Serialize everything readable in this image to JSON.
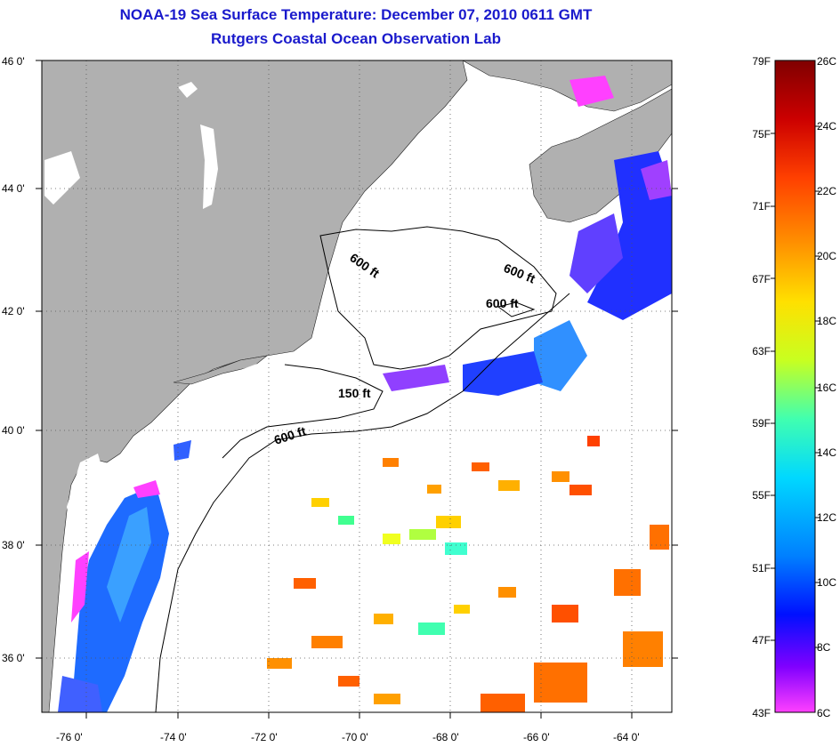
{
  "header": {
    "title": "NOAA-19 Sea Surface Temperature:  December 07, 2010 0611 GMT",
    "subtitle": "Rutgers Coastal Ocean Observation Lab"
  },
  "axes": {
    "lat_ticks": [
      "46 0'",
      "44 0'",
      "42 0'",
      "40 0'",
      "38 0'",
      "36 0'"
    ],
    "lon_ticks": [
      "-76 0'",
      "-74 0'",
      "-72 0'",
      "-70 0'",
      "-68 0'",
      "-66 0'",
      "-64 0'"
    ]
  },
  "contours": [
    "600 ft",
    "600 ft",
    "600 ft",
    "150 ft",
    "600 ft"
  ],
  "colorbar": {
    "fahrenheit": [
      "79F",
      "75F",
      "71F",
      "67F",
      "63F",
      "59F",
      "55F",
      "51F",
      "47F",
      "43F"
    ],
    "celsius": [
      "26C",
      "24C",
      "22C",
      "20C",
      "18C",
      "16C",
      "14C",
      "12C",
      "10C",
      "8C",
      "6C"
    ],
    "gradient": [
      "#800000",
      "#cc0000",
      "#ff4000",
      "#ff9000",
      "#ffe000",
      "#c8ff20",
      "#40ffb0",
      "#00d8ff",
      "#0080ff",
      "#0010ff",
      "#8000ff",
      "#ff40ff"
    ]
  },
  "colors": {
    "land": "#b0b0b0",
    "ocean": "#ffffff",
    "title": "#1a1acc"
  }
}
